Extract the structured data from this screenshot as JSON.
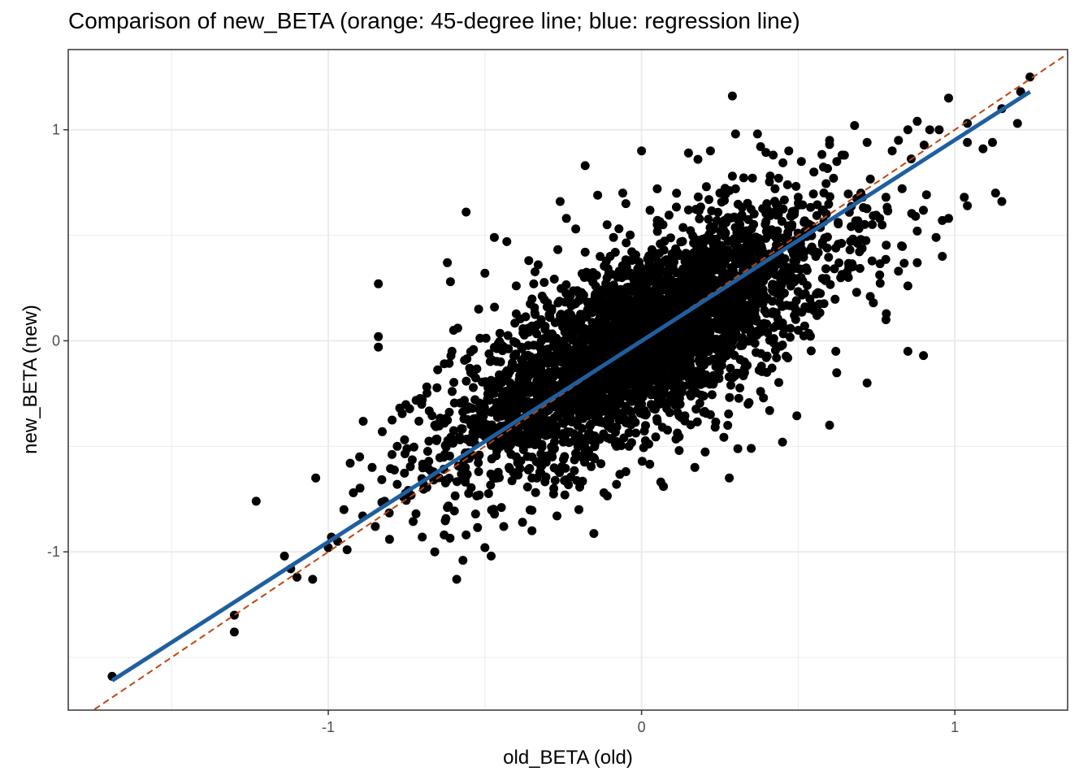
{
  "chart_data": {
    "type": "scatter",
    "title": "Comparison of new_BETA (orange: 45-degree line; blue: regression line)",
    "xlabel": "old_BETA (old)",
    "ylabel": "new_BETA (new)",
    "xlim": [
      -1.83,
      1.36
    ],
    "ylim": [
      -1.75,
      1.38
    ],
    "x_ticks": [
      -1,
      0,
      1
    ],
    "x_tick_labels": [
      "-1",
      "0",
      "1"
    ],
    "y_ticks": [
      -1,
      0,
      1
    ],
    "y_tick_labels": [
      "-1",
      "0",
      "1"
    ],
    "grid": true,
    "theme": "bw",
    "point_color": "#000000",
    "reference_line": {
      "slope": 1,
      "intercept": 0,
      "color": "#c0450e",
      "style": "dashed"
    },
    "regression_line": {
      "x": [
        -1.69,
        1.24
      ],
      "y": [
        -1.61,
        1.18
      ],
      "color": "#1f5fa0"
    },
    "points": {
      "n_approx": 10000,
      "core_correlation": 0.72,
      "core_sd": 0.3,
      "outliers": [
        [
          -1.69,
          -1.59
        ],
        [
          -1.3,
          -1.3
        ],
        [
          -1.3,
          -1.38
        ],
        [
          -1.23,
          -0.76
        ],
        [
          -1.14,
          -1.02
        ],
        [
          -1.12,
          -1.08
        ],
        [
          -1.1,
          -1.12
        ],
        [
          -1.05,
          -1.13
        ],
        [
          -1.04,
          -0.65
        ],
        [
          -0.99,
          -0.93
        ],
        [
          -0.97,
          -0.95
        ],
        [
          -0.94,
          -0.99
        ],
        [
          -0.92,
          -0.72
        ],
        [
          -0.89,
          -0.83
        ],
        [
          -0.85,
          -0.88
        ],
        [
          -0.82,
          -0.76
        ],
        [
          -0.78,
          -0.5
        ],
        [
          -0.76,
          -0.74
        ],
        [
          -0.7,
          -0.93
        ],
        [
          -0.66,
          -1.0
        ],
        [
          -0.63,
          -0.92
        ],
        [
          -0.59,
          -1.13
        ],
        [
          -0.57,
          -1.04
        ],
        [
          -0.56,
          -0.92
        ],
        [
          -0.5,
          -0.98
        ],
        [
          -0.48,
          -1.02
        ],
        [
          -0.44,
          -0.88
        ],
        [
          -0.38,
          -0.86
        ],
        [
          -0.35,
          -0.9
        ],
        [
          -0.27,
          -0.83
        ],
        [
          -0.2,
          -0.8
        ],
        [
          -0.12,
          -0.72
        ],
        [
          -0.08,
          -0.68
        ],
        [
          0.07,
          -0.69
        ],
        [
          0.17,
          -0.6
        ],
        [
          0.28,
          -0.65
        ],
        [
          0.35,
          -0.51
        ],
        [
          0.45,
          -0.48
        ],
        [
          0.6,
          -0.4
        ],
        [
          0.72,
          -0.2
        ],
        [
          0.9,
          -0.07
        ],
        [
          0.85,
          -0.05
        ],
        [
          -0.84,
          0.27
        ],
        [
          -0.84,
          0.02
        ],
        [
          -0.84,
          -0.03
        ],
        [
          -0.56,
          0.61
        ],
        [
          -0.62,
          0.37
        ],
        [
          -0.61,
          0.28
        ],
        [
          -0.5,
          0.32
        ],
        [
          -0.47,
          0.49
        ],
        [
          -0.43,
          0.47
        ],
        [
          -0.36,
          0.38
        ],
        [
          -0.33,
          0.36
        ],
        [
          -0.24,
          0.58
        ],
        [
          -0.21,
          0.53
        ],
        [
          -0.14,
          0.69
        ],
        [
          -0.18,
          0.83
        ],
        [
          -0.11,
          0.55
        ],
        [
          -0.06,
          0.7
        ],
        [
          -0.05,
          0.65
        ],
        [
          0.0,
          0.9
        ],
        [
          0.15,
          0.89
        ],
        [
          0.18,
          0.86
        ],
        [
          0.22,
          0.9
        ],
        [
          0.29,
          0.78
        ],
        [
          0.29,
          1.16
        ],
        [
          0.3,
          0.98
        ],
        [
          0.38,
          0.92
        ],
        [
          0.37,
          0.98
        ],
        [
          0.42,
          0.88
        ],
        [
          0.47,
          0.9
        ],
        [
          0.51,
          0.85
        ],
        [
          0.55,
          0.8
        ],
        [
          0.6,
          0.93
        ],
        [
          0.6,
          0.95
        ],
        [
          0.64,
          0.88
        ],
        [
          0.68,
          1.02
        ],
        [
          0.72,
          0.94
        ],
        [
          0.8,
          0.9
        ],
        [
          0.82,
          0.95
        ],
        [
          0.85,
          1.0
        ],
        [
          0.88,
          1.04
        ],
        [
          0.92,
          1.0
        ],
        [
          0.95,
          1.0
        ],
        [
          0.98,
          1.15
        ],
        [
          1.04,
          1.03
        ],
        [
          1.04,
          0.94
        ],
        [
          1.09,
          0.91
        ],
        [
          1.12,
          0.94
        ],
        [
          1.15,
          1.1
        ],
        [
          1.2,
          1.03
        ],
        [
          1.24,
          1.25
        ],
        [
          1.21,
          1.18
        ],
        [
          1.13,
          0.7
        ],
        [
          1.15,
          0.66
        ],
        [
          1.04,
          0.64
        ],
        [
          1.03,
          0.68
        ],
        [
          0.96,
          0.57
        ],
        [
          0.98,
          0.58
        ],
        [
          0.94,
          0.49
        ],
        [
          0.96,
          0.4
        ],
        [
          0.88,
          0.37
        ],
        [
          0.85,
          0.26
        ],
        [
          0.74,
          0.18
        ],
        [
          0.73,
          0.21
        ],
        [
          0.82,
          0.33
        ],
        [
          0.67,
          0.35
        ],
        [
          0.62,
          0.44
        ],
        [
          0.55,
          0.42
        ],
        [
          0.48,
          0.55
        ],
        [
          0.78,
          0.68
        ],
        [
          0.7,
          0.7
        ],
        [
          -0.26,
          0.66
        ],
        [
          -0.18,
          0.42
        ],
        [
          0.05,
          0.72
        ],
        [
          0.56,
          0.12
        ],
        [
          0.45,
          -0.02
        ],
        [
          0.38,
          -0.24
        ],
        [
          0.34,
          -0.3
        ],
        [
          0.22,
          -0.35
        ],
        [
          0.12,
          -0.52
        ],
        [
          0.05,
          -0.38
        ],
        [
          -0.05,
          -0.62
        ],
        [
          -0.15,
          -0.56
        ],
        [
          -0.28,
          -0.7
        ],
        [
          -0.4,
          -0.55
        ],
        [
          -0.52,
          -0.62
        ],
        [
          -0.62,
          -0.79
        ],
        [
          -0.72,
          -0.82
        ],
        [
          -0.78,
          -0.68
        ],
        [
          -0.66,
          -0.4
        ],
        [
          -0.54,
          -0.32
        ],
        [
          -0.7,
          -0.28
        ],
        [
          -0.45,
          -0.1
        ],
        [
          -0.6,
          0.05
        ],
        [
          -0.52,
          0.15
        ],
        [
          -0.4,
          0.26
        ],
        [
          -0.3,
          0.18
        ],
        [
          0.25,
          0.7
        ],
        [
          0.15,
          0.62
        ],
        [
          0.4,
          0.65
        ],
        [
          0.05,
          0.55
        ],
        [
          0.7,
          0.48
        ],
        [
          0.78,
          0.1
        ],
        [
          0.62,
          -0.05
        ],
        [
          0.5,
          0.05
        ],
        [
          0.4,
          -0.15
        ],
        [
          0.2,
          -0.2
        ],
        [
          0.0,
          -0.3
        ],
        [
          -0.2,
          -0.45
        ],
        [
          -0.35,
          -0.65
        ],
        [
          -0.9,
          -0.55
        ],
        [
          -0.93,
          -0.58
        ],
        [
          -0.86,
          -0.6
        ],
        [
          -0.95,
          -0.8
        ],
        [
          -1.0,
          -0.98
        ],
        [
          0.66,
          0.3
        ],
        [
          0.83,
          0.45
        ],
        [
          0.88,
          0.52
        ],
        [
          0.76,
          0.58
        ],
        [
          0.58,
          0.62
        ],
        [
          0.5,
          0.68
        ],
        [
          0.3,
          0.72
        ],
        [
          -0.08,
          -0.5
        ],
        [
          -0.25,
          -0.48
        ],
        [
          -0.1,
          0.4
        ],
        [
          -0.32,
          0.1
        ],
        [
          0.1,
          0.35
        ],
        [
          0.32,
          0.2
        ]
      ]
    }
  }
}
